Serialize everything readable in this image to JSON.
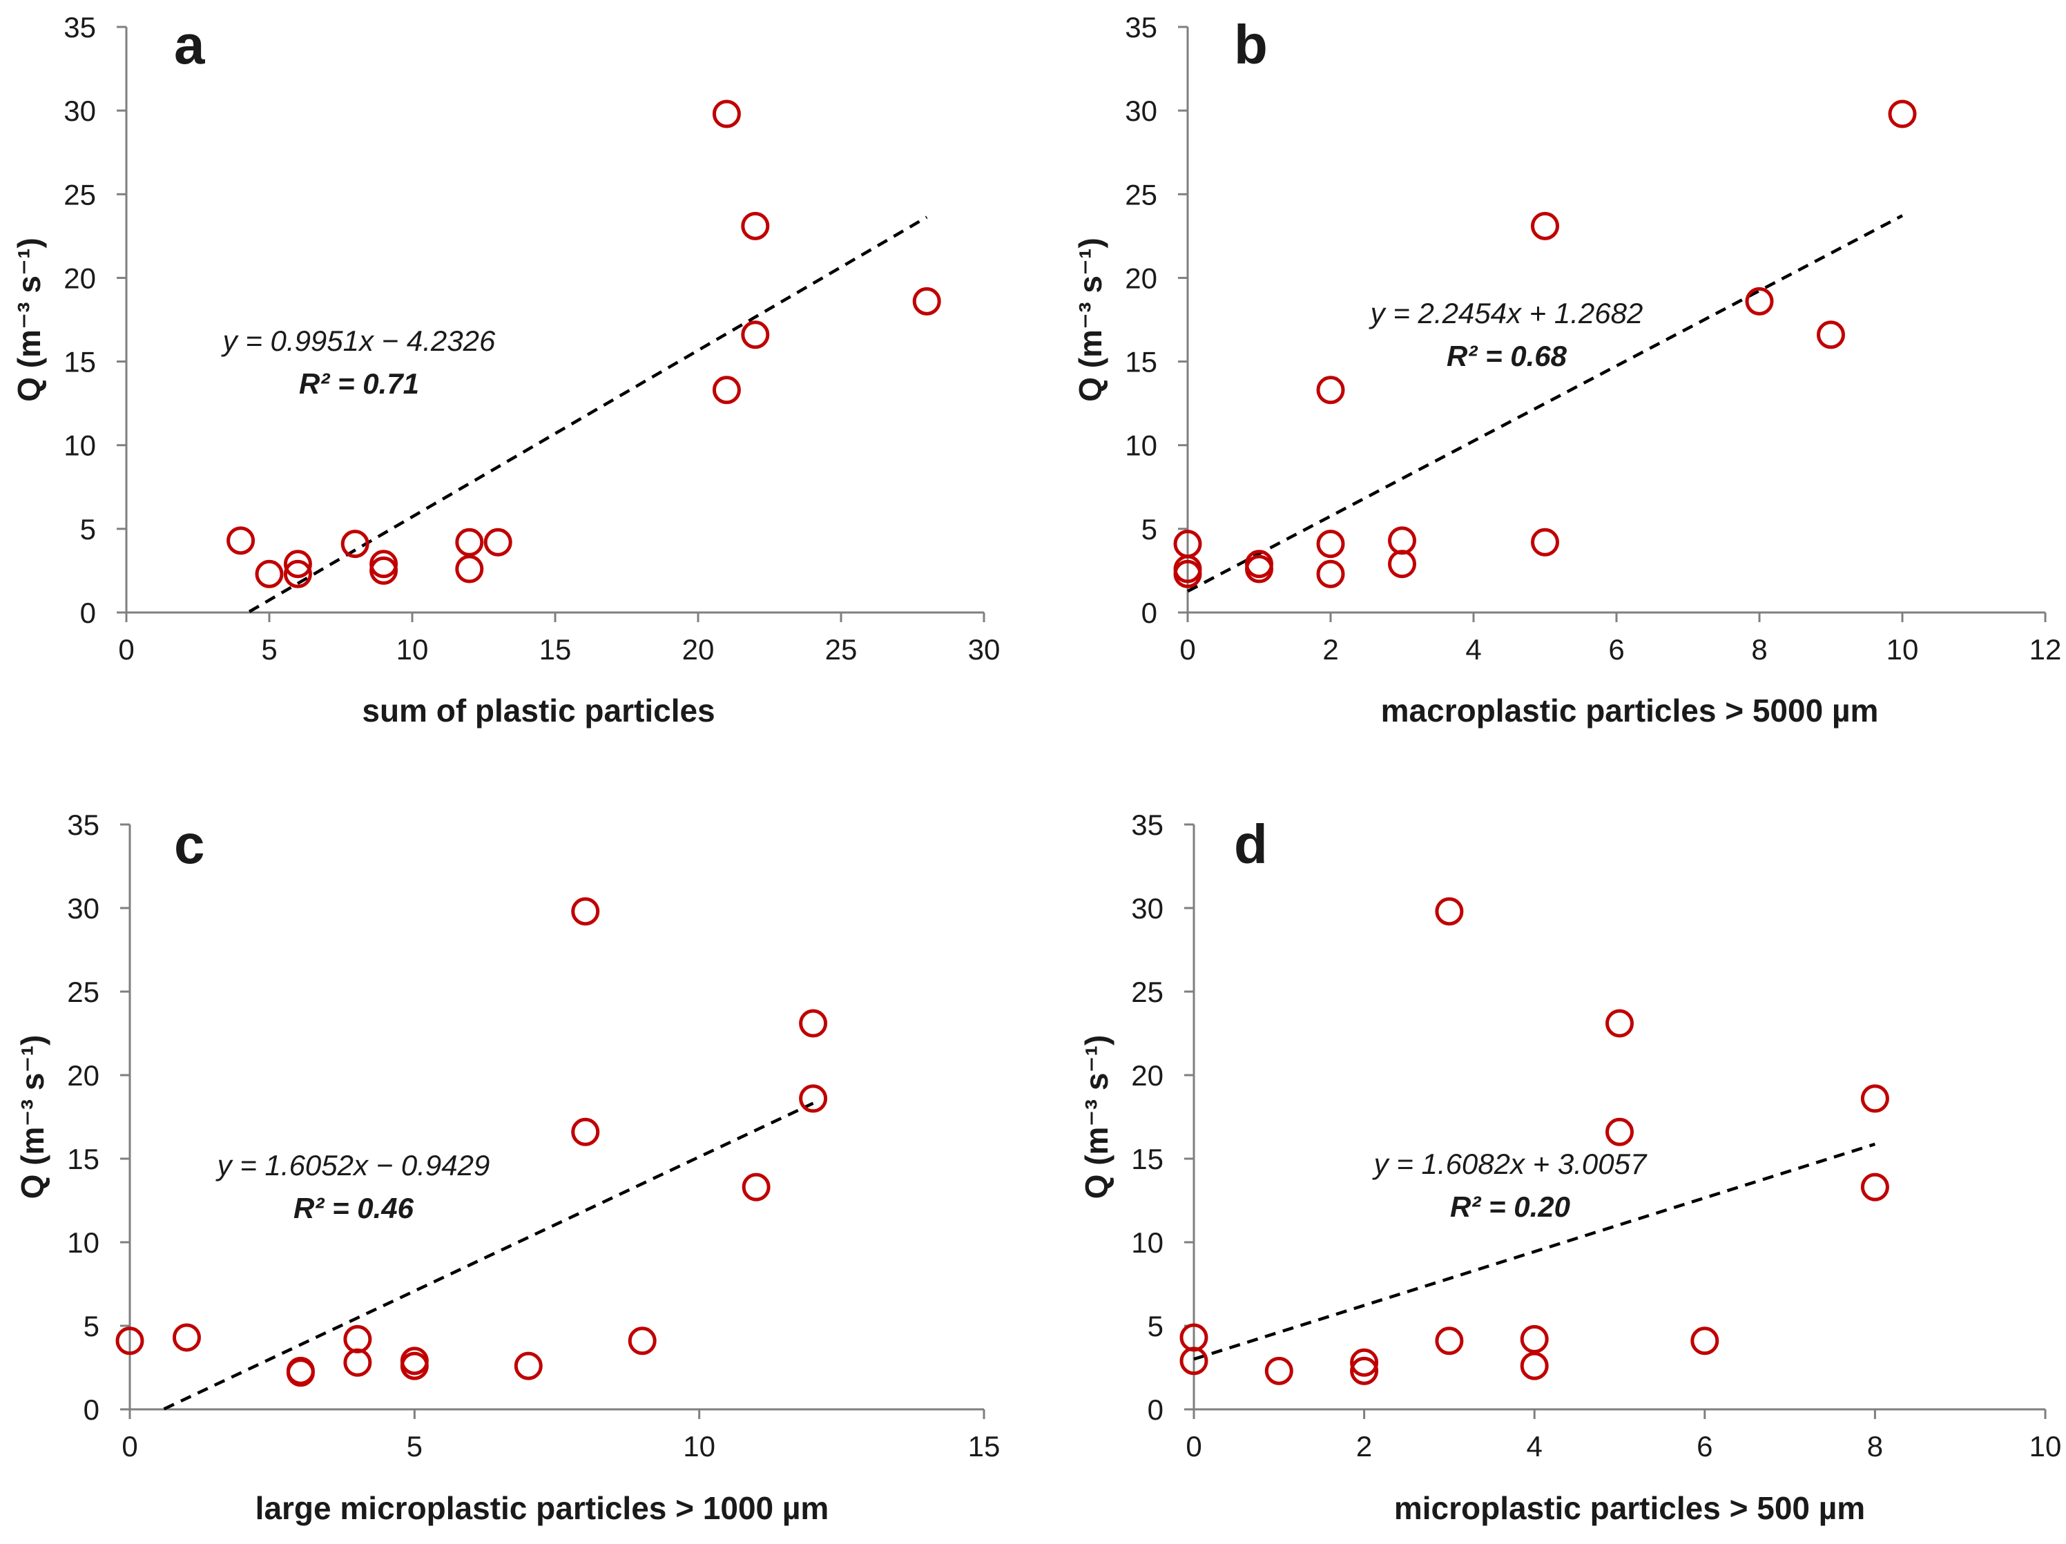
{
  "chart_data": [
    {
      "panel": "a",
      "type": "scatter",
      "xlabel": "sum of plastic particles",
      "ylabel": "Q (m⁻³ s⁻¹)",
      "xlim": [
        0,
        30
      ],
      "ylim": [
        0,
        35
      ],
      "xticks": [
        0,
        5,
        10,
        15,
        20,
        25,
        30
      ],
      "yticks": [
        0,
        5,
        10,
        15,
        20,
        25,
        30,
        35
      ],
      "points": [
        [
          4,
          4.3
        ],
        [
          5,
          2.3
        ],
        [
          6,
          2.9
        ],
        [
          6,
          2.3
        ],
        [
          8,
          4.1
        ],
        [
          9,
          2.9
        ],
        [
          9,
          2.5
        ],
        [
          12,
          4.2
        ],
        [
          12,
          2.6
        ],
        [
          13,
          4.2
        ],
        [
          21,
          29.8
        ],
        [
          21,
          13.3
        ],
        [
          22,
          23.1
        ],
        [
          22,
          16.6
        ],
        [
          28,
          18.6
        ]
      ],
      "trendline": {
        "slope": 0.9951,
        "intercept": -4.2326,
        "x_range": [
          4.3,
          28
        ]
      },
      "equation": "y = 0.9951x − 4.2326",
      "r2": "R² = 0.71",
      "marker_color": "#c00000"
    },
    {
      "panel": "b",
      "type": "scatter",
      "xlabel": "macroplastic particles > 5000 µm",
      "ylabel": "Q (m⁻³ s⁻¹)",
      "xlim": [
        0,
        12
      ],
      "ylim": [
        0,
        35
      ],
      "xticks": [
        0,
        2,
        4,
        6,
        8,
        10,
        12
      ],
      "yticks": [
        0,
        5,
        10,
        15,
        20,
        25,
        30,
        35
      ],
      "points": [
        [
          0,
          4.1
        ],
        [
          0,
          2.6
        ],
        [
          0,
          2.3
        ],
        [
          1,
          2.9
        ],
        [
          1,
          2.6
        ],
        [
          2,
          13.3
        ],
        [
          2,
          4.1
        ],
        [
          2,
          2.3
        ],
        [
          3,
          4.3
        ],
        [
          3,
          2.9
        ],
        [
          5,
          23.1
        ],
        [
          5,
          4.2
        ],
        [
          8,
          18.6
        ],
        [
          9,
          16.6
        ],
        [
          10,
          29.8
        ]
      ],
      "trendline": {
        "slope": 2.2454,
        "intercept": 1.2682,
        "x_range": [
          0,
          10
        ]
      },
      "equation": "y = 2.2454x + 1.2682",
      "r2": "R² = 0.68",
      "marker_color": "#c00000"
    },
    {
      "panel": "c",
      "type": "scatter",
      "xlabel": "large microplastic particles > 1000 µm",
      "ylabel": "Q (m⁻³ s⁻¹)",
      "xlim": [
        0,
        15
      ],
      "ylim": [
        0,
        35
      ],
      "xticks": [
        0,
        5,
        10,
        15
      ],
      "yticks": [
        0,
        5,
        10,
        15,
        20,
        25,
        30,
        35
      ],
      "points": [
        [
          0,
          4.1
        ],
        [
          1,
          4.3
        ],
        [
          3,
          2.3
        ],
        [
          3,
          2.2
        ],
        [
          4,
          4.2
        ],
        [
          4,
          2.8
        ],
        [
          5,
          2.9
        ],
        [
          5,
          2.6
        ],
        [
          7,
          2.6
        ],
        [
          8,
          29.8
        ],
        [
          8,
          16.6
        ],
        [
          9,
          4.1
        ],
        [
          11,
          13.3
        ],
        [
          12,
          23.1
        ],
        [
          12,
          18.6
        ]
      ],
      "trendline": {
        "slope": 1.6052,
        "intercept": -0.9429,
        "x_range": [
          0.6,
          12
        ]
      },
      "equation": "y = 1.6052x − 0.9429",
      "r2": "R² = 0.46",
      "marker_color": "#c00000"
    },
    {
      "panel": "d",
      "type": "scatter",
      "xlabel": "microplastic particles > 500 µm",
      "ylabel": "Q (m⁻³ s⁻¹)",
      "xlim": [
        0,
        10
      ],
      "ylim": [
        0,
        35
      ],
      "xticks": [
        0,
        2,
        4,
        6,
        8,
        10
      ],
      "yticks": [
        0,
        5,
        10,
        15,
        20,
        25,
        30,
        35
      ],
      "points": [
        [
          0,
          4.3
        ],
        [
          0,
          2.9
        ],
        [
          1,
          2.3
        ],
        [
          2,
          2.8
        ],
        [
          2,
          2.3
        ],
        [
          3,
          29.8
        ],
        [
          3,
          4.1
        ],
        [
          4,
          4.2
        ],
        [
          4,
          2.6
        ],
        [
          5,
          23.1
        ],
        [
          5,
          16.6
        ],
        [
          6,
          4.1
        ],
        [
          8,
          18.6
        ],
        [
          8,
          13.3
        ]
      ],
      "trendline": {
        "slope": 1.6082,
        "intercept": 3.0057,
        "x_range": [
          0,
          8
        ]
      },
      "equation": "y = 1.6082x + 3.0057",
      "r2": "R² = 0.20",
      "marker_color": "#c00000"
    }
  ]
}
